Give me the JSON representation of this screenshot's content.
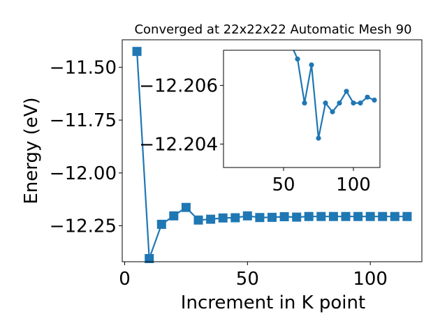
{
  "colors": {
    "series": "#1f77b4",
    "axis": "#000000",
    "background": "#ffffff"
  },
  "chart_data": [
    {
      "type": "line",
      "role": "main",
      "title": "Converged at 22x22x22 Automatic Mesh 90",
      "xlabel": "Increment in K point",
      "ylabel": "Energy (eV)",
      "xlim": [
        -1,
        121
      ],
      "ylim": [
        -12.42,
        -11.37
      ],
      "xticks": [
        0,
        50,
        100
      ],
      "yticks": [
        -11.5,
        -11.75,
        -12.0,
        -12.25
      ],
      "xtick_labels": [
        "0",
        "50",
        "100"
      ],
      "ytick_labels": [
        "−11.50",
        "−11.75",
        "−12.00",
        "−12.25"
      ],
      "grid": false,
      "marker": "square",
      "series": [
        {
          "x": [
            5,
            10,
            15,
            20,
            25,
            30,
            35,
            40,
            45,
            50,
            55,
            60,
            65,
            70,
            75,
            80,
            85,
            90,
            95,
            100,
            105,
            110,
            115
          ],
          "y": [
            -11.425,
            -12.405,
            -12.243,
            -12.203,
            -12.163,
            -12.223,
            -12.219,
            -12.213,
            -12.212,
            -12.203,
            -12.211,
            -12.21,
            -12.207,
            -12.209,
            -12.206,
            -12.206,
            -12.206,
            -12.206,
            -12.206,
            -12.206,
            -12.206,
            -12.206,
            -12.206
          ]
        }
      ]
    },
    {
      "type": "line",
      "role": "inset",
      "xlim": [
        7,
        119
      ],
      "ylim": [
        -12.2032,
        -12.2072
      ],
      "xticks": [
        50,
        100
      ],
      "yticks": [
        -12.206,
        -12.204
      ],
      "xtick_labels": [
        "50",
        "100"
      ],
      "ytick_labels": [
        "−12.206",
        "−12.204"
      ],
      "grid": false,
      "marker": "circle",
      "series": [
        {
          "x": [
            60,
            65,
            70,
            75,
            80,
            85,
            90,
            95,
            100,
            105,
            110,
            115
          ],
          "y": [
            -12.2069,
            -12.2054,
            -12.2067,
            -12.2042,
            -12.2054,
            -12.2051,
            -12.2054,
            -12.2058,
            -12.2054,
            -12.2054,
            -12.2056,
            -12.2055
          ]
        }
      ]
    }
  ]
}
